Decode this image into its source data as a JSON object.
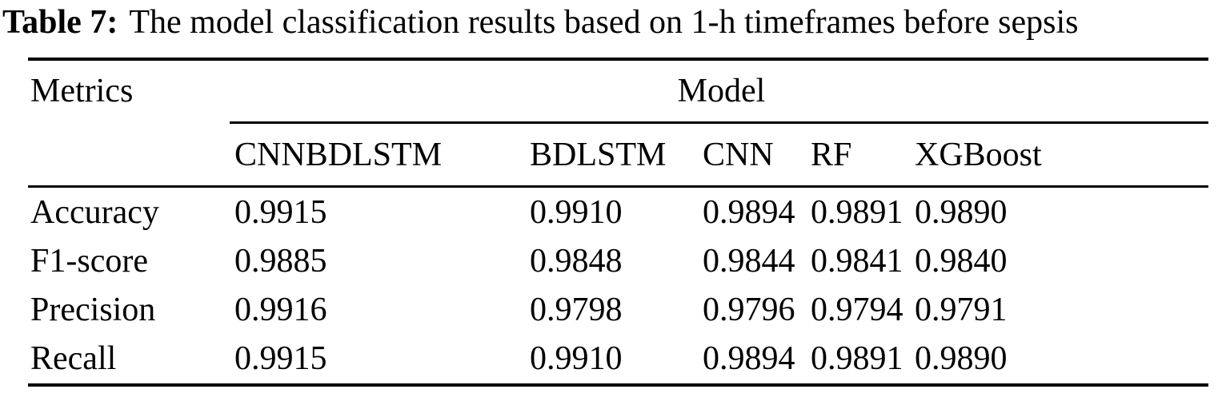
{
  "caption": {
    "label": "Table 7:",
    "text": "The model classification results based on 1-h timeframes before sepsis"
  },
  "table": {
    "metrics_header": "Metrics",
    "model_header": "Model",
    "columns": [
      "CNNBDLSTM",
      "BDLSTM",
      "CNN",
      "RF",
      "XGBoost"
    ],
    "rows": [
      {
        "metric": "Accuracy",
        "values": [
          "0.9915",
          "0.9910",
          "0.9894",
          "0.9891",
          "0.9890"
        ]
      },
      {
        "metric": "F1-score",
        "values": [
          "0.9885",
          "0.9848",
          "0.9844",
          "0.9841",
          "0.9840"
        ]
      },
      {
        "metric": "Precision",
        "values": [
          "0.9916",
          "0.9798",
          "0.9796",
          "0.9794",
          "0.9791"
        ]
      },
      {
        "metric": "Recall",
        "values": [
          "0.9915",
          "0.9910",
          "0.9894",
          "0.9891",
          "0.9890"
        ]
      }
    ]
  },
  "colors": {
    "text": "#000000",
    "background": "#ffffff",
    "rule": "#000000"
  }
}
